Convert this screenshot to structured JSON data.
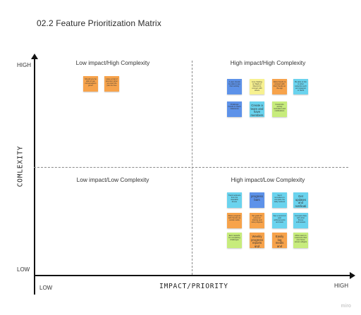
{
  "board": {
    "title": "02.2 Feature Prioritization Matrix",
    "watermark": "miro"
  },
  "axes": {
    "y_label": "COMLEXITY",
    "y_high": "HIGH",
    "y_low": "LOW",
    "x_label": "IMPACT/PRIORITY",
    "x_low": "LOW",
    "x_high": "HIGH"
  },
  "quadrants": {
    "top_left": "Low impact/High Complexity",
    "top_right": "High impact/High Complexity",
    "bottom_left": "Low impact/Low Complexity",
    "bottom_right": "High impact/Low Complexity"
  },
  "colors": {
    "orange": "#f7a34b",
    "blue": "#5d92e9",
    "light_blue": "#6ad3ee",
    "yellow": "#f7f190",
    "green": "#c7ec7c",
    "axis": "#111111"
  },
  "stickies": {
    "top_left": [
      {
        "color": "orange",
        "text": "Should you be able to see conversations grow?"
      },
      {
        "color": "orange",
        "text": "Have a trial of premium when you start the plan for free"
      }
    ],
    "top_right": [
      {
        "color": "blue",
        "text": "A user should be able to see their activity"
      },
      {
        "color": "yellow",
        "text": "Live chatting on Slack or Discord to connect with others"
      },
      {
        "color": "orange",
        "text": "Allow friends to connect with their friends on the app"
      },
      {
        "color": "light_blue",
        "text": "Be able to link to other networks such as Instagram or Slack"
      },
      {
        "color": "blue",
        "text": "Challenge friends to reach milestones"
      },
      {
        "color": "light_blue",
        "text": "Create a team and have members compete",
        "big": true
      },
      {
        "color": "green",
        "text": "Customize activity reminders and notifications"
      }
    ],
    "bottom_right": [
      {
        "color": "light_blue",
        "text": "Track workouts from the wearable device"
      },
      {
        "color": "blue",
        "text": "progress bars",
        "big": true
      },
      {
        "color": "light_blue",
        "text": "Send reminders to complete the daily workout"
      },
      {
        "color": "light_blue",
        "text": "Get updates and notifications about progress",
        "big": true
      },
      {
        "color": "orange",
        "text": "Share progress with friends via social media"
      },
      {
        "color": "orange",
        "text": "Set goals for personal training and view progress"
      },
      {
        "color": "light_blue",
        "text": "See a record of past achievements and stats"
      },
      {
        "color": "light_blue",
        "text": "Compare data with other fitness enthusiasts"
      },
      {
        "color": "green",
        "text": "Earn rewards for completing challenges"
      },
      {
        "color": "orange",
        "text": "Weekly progress reports and highlights",
        "big": true
      },
      {
        "color": "orange",
        "text": "Easily log meals and water intake",
        "big": true
      },
      {
        "color": "green",
        "text": "Allow users to customize their own home screen widgets"
      }
    ]
  }
}
